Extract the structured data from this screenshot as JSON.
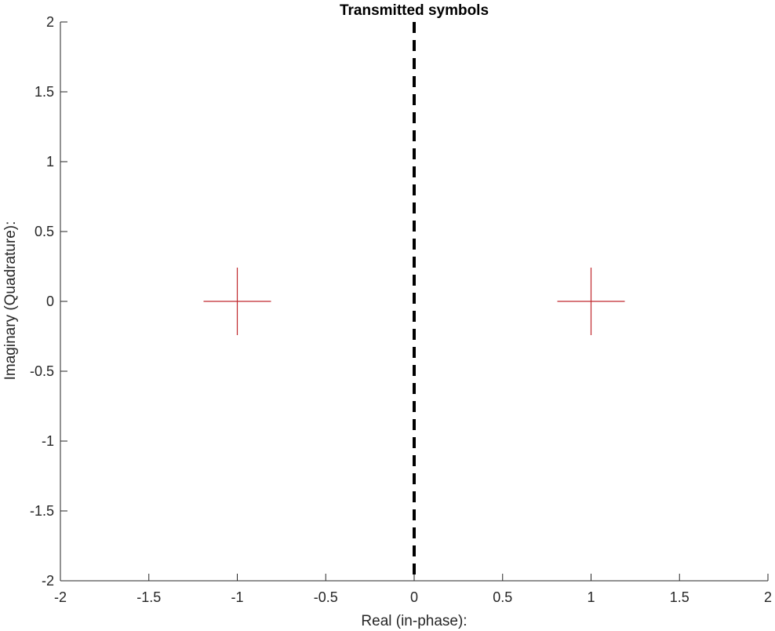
{
  "chart_data": {
    "type": "scatter",
    "title": "Transmitted symbols",
    "xlabel": "Real (in-phase):",
    "ylabel": "Imaginary (Quadrature):",
    "xlim": [
      -2,
      2
    ],
    "ylim": [
      -2,
      2
    ],
    "xticks": [
      "-2",
      "-1.5",
      "-1",
      "-0.5",
      "0",
      "0.5",
      "1",
      "1.5",
      "2"
    ],
    "yticks": [
      "-2",
      "-1.5",
      "-1",
      "-0.5",
      "0",
      "0.5",
      "1",
      "1.5",
      "2"
    ],
    "grid": false,
    "points": [
      {
        "x": -1,
        "y": 0
      },
      {
        "x": 1,
        "y": 0
      }
    ],
    "marker": "plus",
    "marker_color": "#c0282d",
    "decision_boundary": {
      "x": 0,
      "style": "dashed",
      "color": "#000000"
    }
  }
}
